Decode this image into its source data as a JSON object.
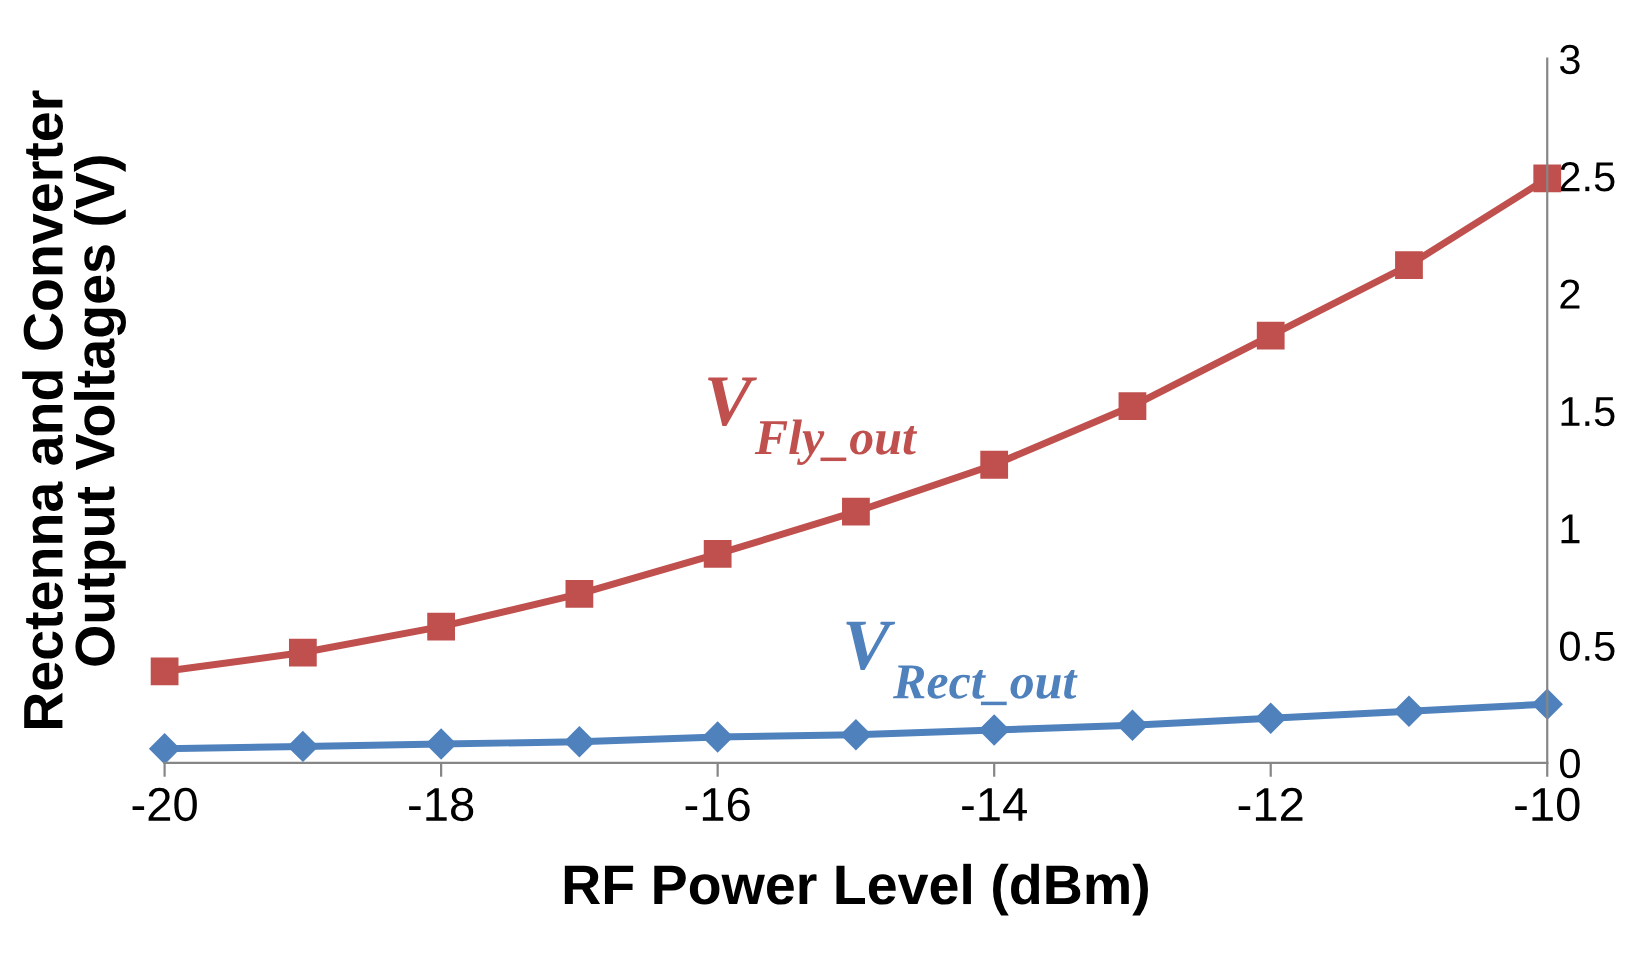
{
  "chart_data": {
    "type": "line",
    "xlabel": "RF Power Level (dBm)",
    "ylabel": "Rectenna and Converter\nOutput Voltages (V)",
    "x": [
      -20,
      -19,
      -18,
      -17,
      -16,
      -15,
      -14,
      -13,
      -12,
      -11,
      -10
    ],
    "series": [
      {
        "name": "V$_{Fly_out}$",
        "color": "#c0504d",
        "marker": "square",
        "values": [
          0.39,
          0.47,
          0.58,
          0.72,
          0.89,
          1.07,
          1.27,
          1.52,
          1.82,
          2.12,
          2.49
        ]
      },
      {
        "name": "V$_{Rect_out}$",
        "color": "#4f81bd",
        "marker": "diamond",
        "values": [
          0.06,
          0.07,
          0.08,
          0.09,
          0.11,
          0.12,
          0.14,
          0.16,
          0.19,
          0.22,
          0.25
        ]
      }
    ],
    "xlim": [
      -20,
      -10
    ],
    "ylim": [
      0,
      3
    ],
    "xticks": [
      -20,
      -18,
      -16,
      -14,
      -12,
      -10
    ],
    "yticks": [
      0,
      0.5,
      1,
      1.5,
      2,
      2.5,
      3
    ],
    "grid": false,
    "legend": false,
    "line_style": "solid"
  }
}
